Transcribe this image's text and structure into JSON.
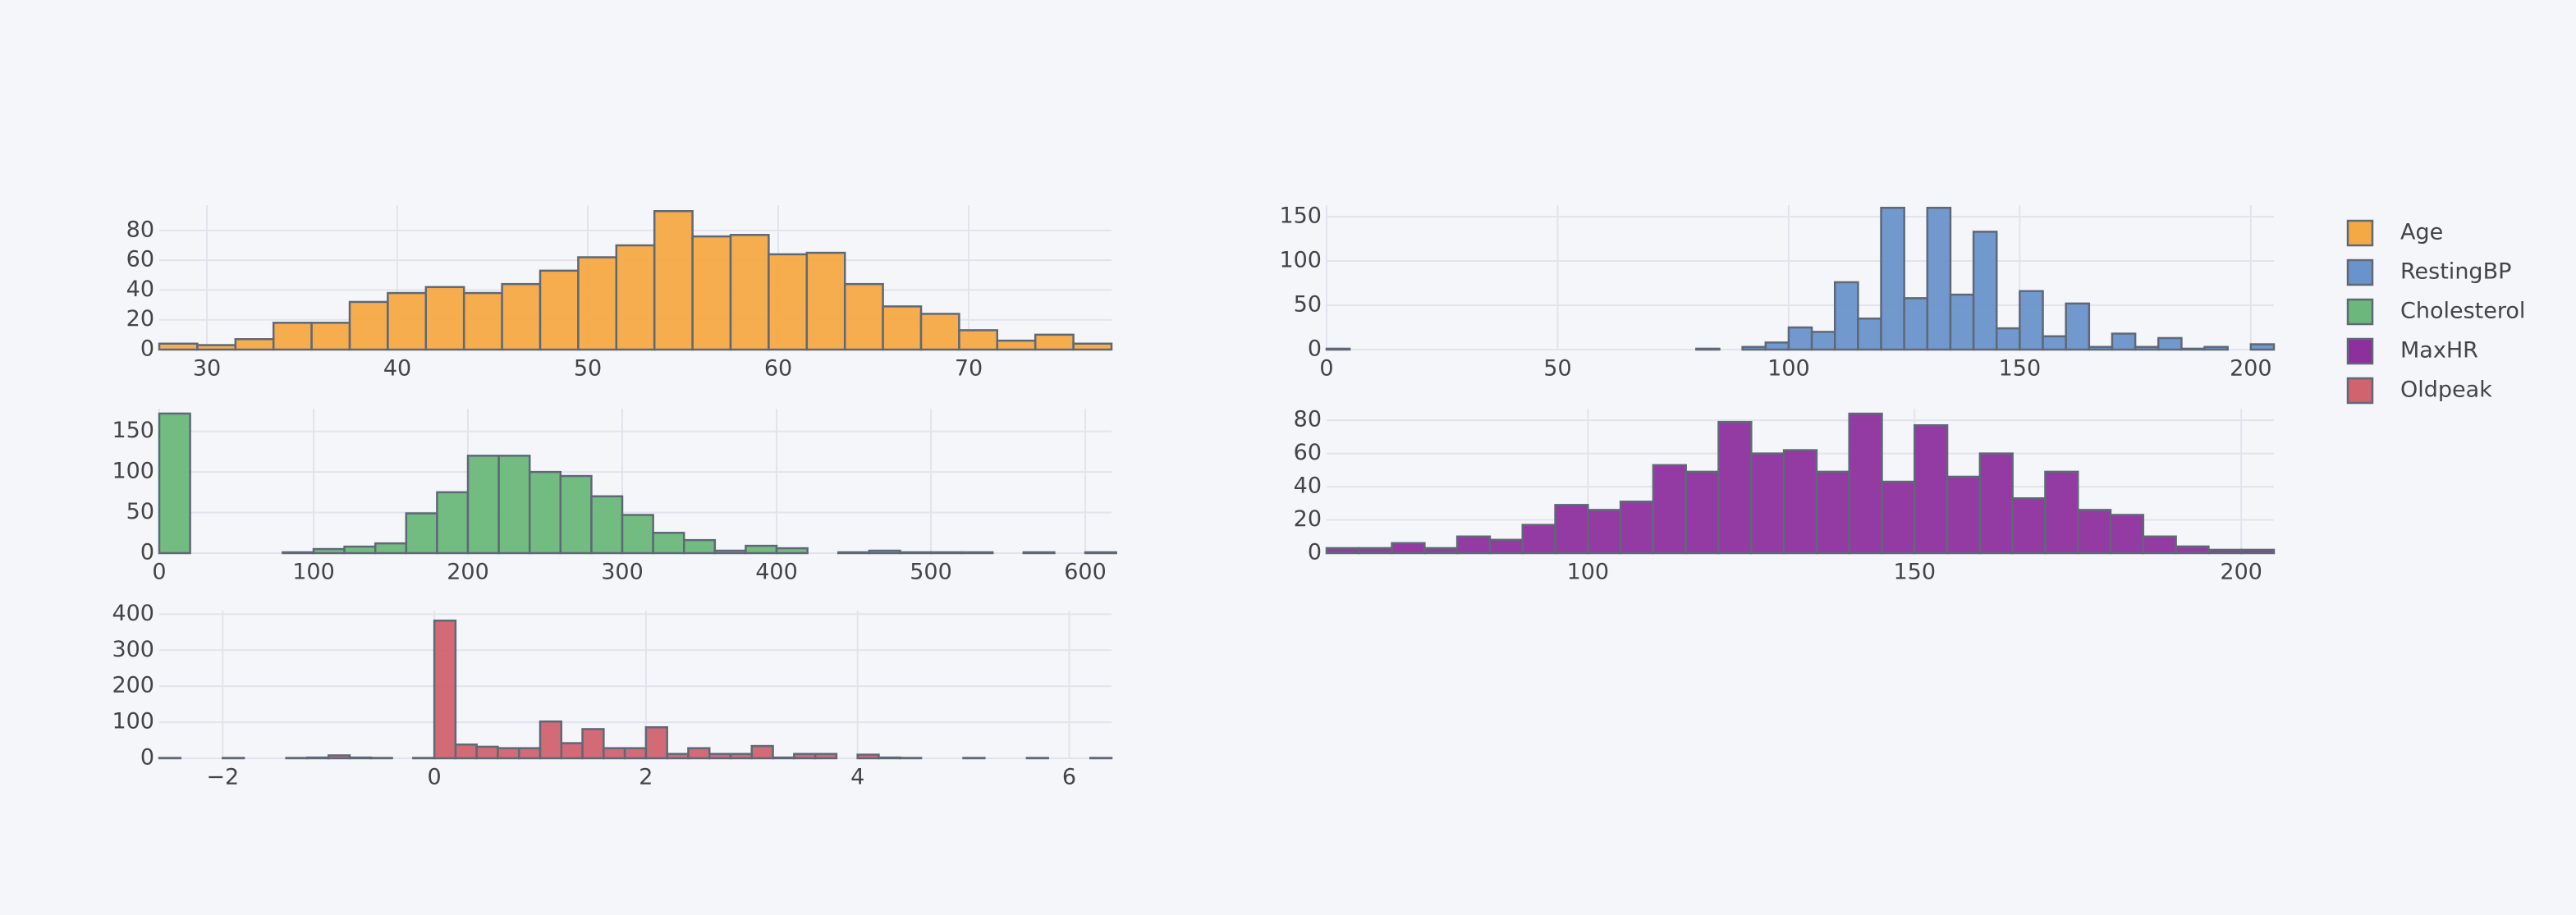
{
  "chart_data": [
    {
      "type": "histogram",
      "name": "Age",
      "color": "#f5a945",
      "bins": [
        27.5,
        29.5,
        31.5,
        33.5,
        35.5,
        37.5,
        39.5,
        41.5,
        43.5,
        45.5,
        47.5,
        49.5,
        51.5,
        53.5,
        55.5,
        57.5,
        59.5,
        61.5,
        63.5,
        65.5,
        67.5,
        69.5,
        71.5,
        73.5,
        75.5,
        77.5
      ],
      "values": [
        4,
        3,
        7,
        18,
        18,
        32,
        38,
        42,
        38,
        44,
        53,
        62,
        70,
        93,
        76,
        77,
        64,
        65,
        44,
        29,
        24,
        13,
        6,
        10,
        4
      ],
      "xlim": [
        27.5,
        77.5
      ],
      "xticks": [
        30,
        40,
        50,
        60,
        70
      ],
      "ylim": [
        0,
        97
      ],
      "yticks": [
        0,
        20,
        40,
        60,
        80
      ]
    },
    {
      "type": "histogram",
      "name": "RestingBP",
      "color": "#6a93cb",
      "bins": [
        0,
        5,
        10,
        15,
        20,
        25,
        30,
        35,
        40,
        45,
        50,
        55,
        60,
        65,
        70,
        75,
        80,
        85,
        90,
        95,
        100,
        105,
        110,
        115,
        120,
        125,
        130,
        135,
        140,
        145,
        150,
        155,
        160,
        165,
        170,
        175,
        180,
        185,
        190,
        195,
        200,
        205
      ],
      "values": [
        1,
        0,
        0,
        0,
        0,
        0,
        0,
        0,
        0,
        0,
        0,
        0,
        0,
        0,
        0,
        0,
        1,
        0,
        3,
        8,
        25,
        20,
        76,
        35,
        160,
        58,
        160,
        62,
        133,
        24,
        66,
        15,
        52,
        3,
        18,
        3,
        13,
        1,
        3,
        0,
        6
      ],
      "xlim": [
        0,
        205
      ],
      "xticks": [
        0,
        50,
        100,
        150,
        200
      ],
      "ylim": [
        0,
        163
      ],
      "yticks": [
        0,
        50,
        100,
        150
      ]
    },
    {
      "type": "histogram",
      "name": "Cholesterol",
      "color": "#6cb87a",
      "bins": [
        0,
        20,
        40,
        60,
        80,
        100,
        120,
        140,
        160,
        180,
        200,
        220,
        240,
        260,
        280,
        300,
        320,
        340,
        360,
        380,
        400,
        420,
        440,
        460,
        480,
        500,
        520,
        540,
        560,
        580,
        600,
        620
      ],
      "values": [
        172,
        0,
        0,
        0,
        1,
        5,
        8,
        12,
        49,
        75,
        120,
        120,
        100,
        95,
        70,
        47,
        25,
        16,
        3,
        9,
        6,
        0,
        1,
        3,
        1,
        1,
        1,
        0,
        1,
        0,
        1
      ],
      "xlim": [
        0,
        617
      ],
      "xticks": [
        0,
        100,
        200,
        300,
        400,
        500,
        600
      ],
      "ylim": [
        0,
        178
      ],
      "yticks": [
        0,
        50,
        100,
        150
      ]
    },
    {
      "type": "histogram",
      "name": "MaxHR",
      "color": "#8e2f9e",
      "bins": [
        60,
        65,
        70,
        75,
        80,
        85,
        90,
        95,
        100,
        105,
        110,
        115,
        120,
        125,
        130,
        135,
        140,
        145,
        150,
        155,
        160,
        165,
        170,
        175,
        180,
        185,
        190,
        195,
        200,
        205
      ],
      "values": [
        3,
        3,
        6,
        3,
        10,
        8,
        17,
        29,
        26,
        31,
        53,
        49,
        79,
        60,
        62,
        49,
        84,
        43,
        77,
        46,
        60,
        33,
        49,
        26,
        23,
        10,
        4,
        2,
        2
      ],
      "xlim": [
        60,
        205
      ],
      "xticks": [
        100,
        150,
        200
      ],
      "ylim": [
        0,
        87
      ],
      "yticks": [
        0,
        20,
        40,
        60,
        80
      ]
    },
    {
      "type": "histogram",
      "name": "Oldpeak",
      "color": "#d1636f",
      "bins": [
        -2.6,
        -2.4,
        -2.2,
        -2.0,
        -1.8,
        -1.6,
        -1.4,
        -1.2,
        -1.0,
        -0.8,
        -0.6,
        -0.4,
        -0.2,
        0,
        0.2,
        0.4,
        0.6,
        0.8,
        1.0,
        1.2,
        1.4,
        1.6,
        1.8,
        2.0,
        2.2,
        2.4,
        2.6,
        2.8,
        3.0,
        3.2,
        3.4,
        3.6,
        3.8,
        4.0,
        4.2,
        4.4,
        4.6,
        4.8,
        5.0,
        5.2,
        5.4,
        5.6,
        5.8,
        6.0,
        6.2,
        6.4
      ],
      "values": [
        1,
        0,
        0,
        1,
        0,
        0,
        1,
        2,
        8,
        2,
        1,
        0,
        1,
        382,
        38,
        32,
        28,
        28,
        102,
        42,
        81,
        28,
        28,
        86,
        12,
        28,
        12,
        12,
        34,
        2,
        12,
        12,
        0,
        10,
        2,
        1,
        0,
        0,
        1,
        0,
        0,
        1,
        0,
        0,
        1
      ],
      "xlim": [
        -2.6,
        6.4
      ],
      "xticks": [
        {
          "value": -2,
          "label": "−2"
        },
        0,
        2,
        4,
        {
          "value": 6,
          "label": "6"
        }
      ],
      "ylim": [
        0,
        410
      ],
      "yticks": [
        0,
        100,
        200,
        300,
        400
      ]
    }
  ]
}
